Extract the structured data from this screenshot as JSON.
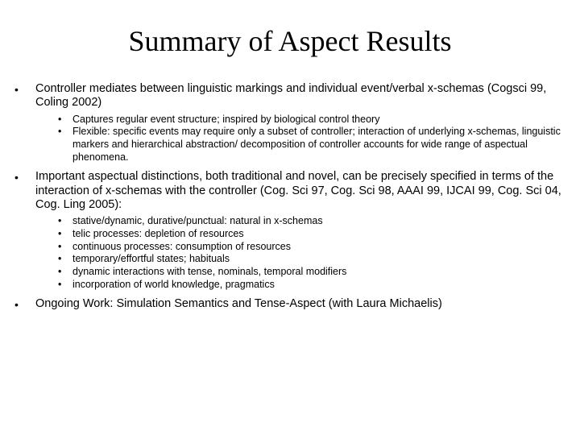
{
  "title": "Summary of Aspect Results",
  "items": [
    {
      "text": "Controller mediates between linguistic markings and individual event/verbal x-schemas (Cogsci 99, Coling 2002)",
      "sub": [
        "Captures regular event structure; inspired by biological control theory",
        "Flexible: specific events may require only a subset of controller; interaction of underlying x-schemas, linguistic markers and hierarchical abstraction/ decomposition of controller accounts for wide range of aspectual phenomena."
      ]
    },
    {
      "text": "Important aspectual distinctions, both traditional and novel, can be precisely specified in terms of the interaction of x-schemas with the controller (Cog. Sci 97, Cog. Sci 98, AAAI 99, IJCAI 99, Cog. Sci 04, Cog. Ling 2005):",
      "sub": [
        "stative/dynamic, durative/punctual: natural in x-schemas",
        "telic processes: depletion of resources",
        "continuous processes: consumption of resources",
        "temporary/effortful states; habituals",
        "dynamic interactions with tense, nominals, temporal modifiers",
        "incorporation of world knowledge, pragmatics"
      ]
    },
    {
      "text": "Ongoing Work: Simulation Semantics and Tense-Aspect (with Laura Michaelis)",
      "sub": []
    }
  ]
}
